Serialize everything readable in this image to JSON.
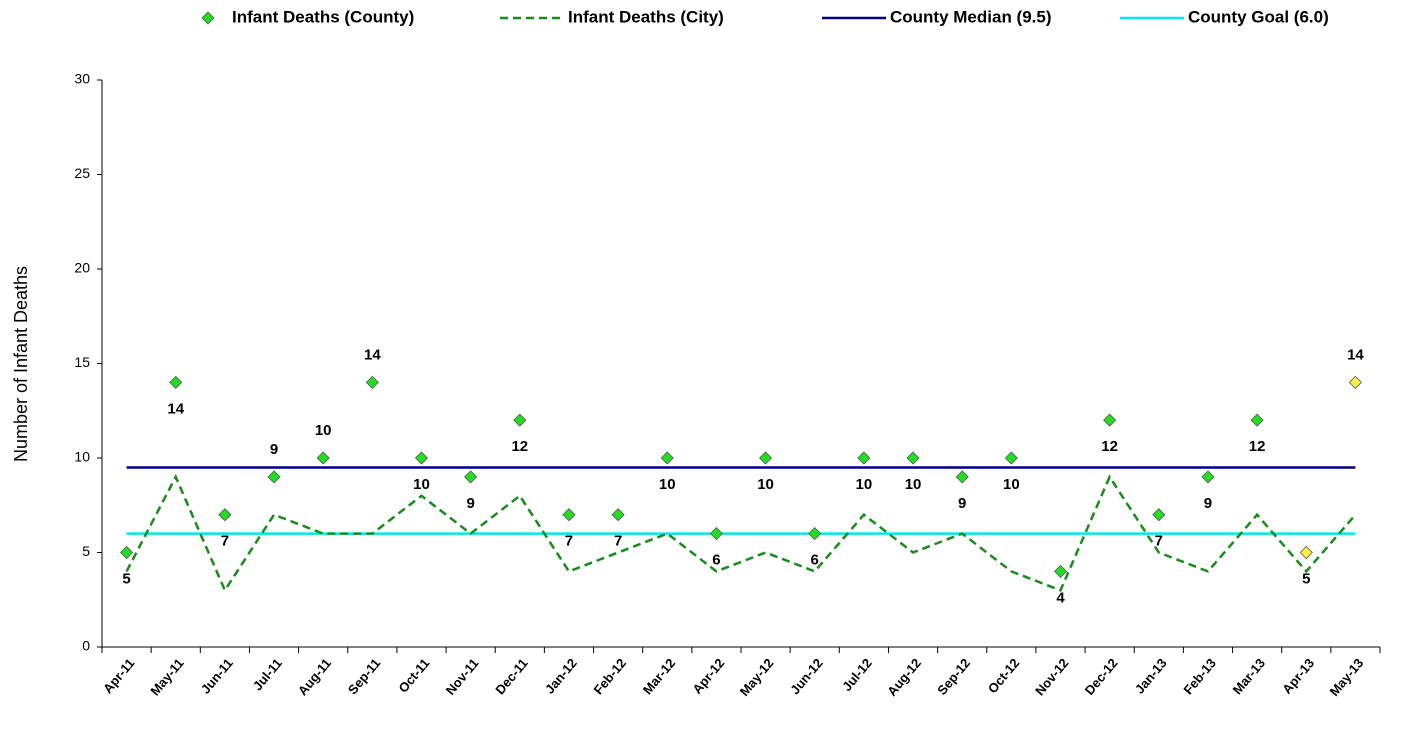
{
  "chart_data": {
    "type": "line",
    "y_label": "Number of Infant Deaths",
    "categories": [
      "Apr-11",
      "May-11",
      "Jun-11",
      "Jul-11",
      "Aug-11",
      "Sep-11",
      "Oct-11",
      "Nov-11",
      "Dec-11",
      "Jan-12",
      "Feb-12",
      "Mar-12",
      "Apr-12",
      "May-12",
      "Jun-12",
      "Jul-12",
      "Aug-12",
      "Sep-12",
      "Oct-12",
      "Nov-12",
      "Dec-12",
      "Jan-13",
      "Feb-13",
      "Mar-13",
      "Apr-13",
      "May-13"
    ],
    "series": [
      {
        "name": "Infant Deaths (County)",
        "style": "markers",
        "color": "#22dd22",
        "point_colors": [
          "#22dd22",
          "#22dd22",
          "#22dd22",
          "#22dd22",
          "#22dd22",
          "#22dd22",
          "#22dd22",
          "#22dd22",
          "#22dd22",
          "#22dd22",
          "#22dd22",
          "#22dd22",
          "#22dd22",
          "#22dd22",
          "#22dd22",
          "#22dd22",
          "#22dd22",
          "#22dd22",
          "#22dd22",
          "#22dd22",
          "#22dd22",
          "#22dd22",
          "#22dd22",
          "#22dd22",
          "#ffee44",
          "#ffee44"
        ],
        "values": [
          5,
          14,
          7,
          9,
          10,
          14,
          10,
          9,
          12,
          7,
          7,
          10,
          6,
          10,
          6,
          10,
          10,
          9,
          10,
          4,
          12,
          7,
          9,
          12,
          5,
          14
        ]
      },
      {
        "name": "Infant Deaths (City)",
        "style": "dashed",
        "color": "#1a8a1a",
        "values": [
          4,
          9,
          3,
          7,
          6,
          6,
          8,
          6,
          8,
          4,
          5,
          6,
          4,
          5,
          4,
          7,
          5,
          6,
          4,
          3,
          9,
          5,
          4,
          7,
          4,
          7
        ]
      },
      {
        "name": "County Median (9.5)",
        "style": "hline",
        "color": "#000080",
        "value": 9.5
      },
      {
        "name": "County Goal (6.0)",
        "style": "hline",
        "color": "#00e5ee",
        "value": 6.0
      }
    ],
    "ylim": [
      0,
      30
    ],
    "yticks": [
      0,
      5,
      10,
      15,
      20,
      25,
      30
    ],
    "grid": false
  }
}
